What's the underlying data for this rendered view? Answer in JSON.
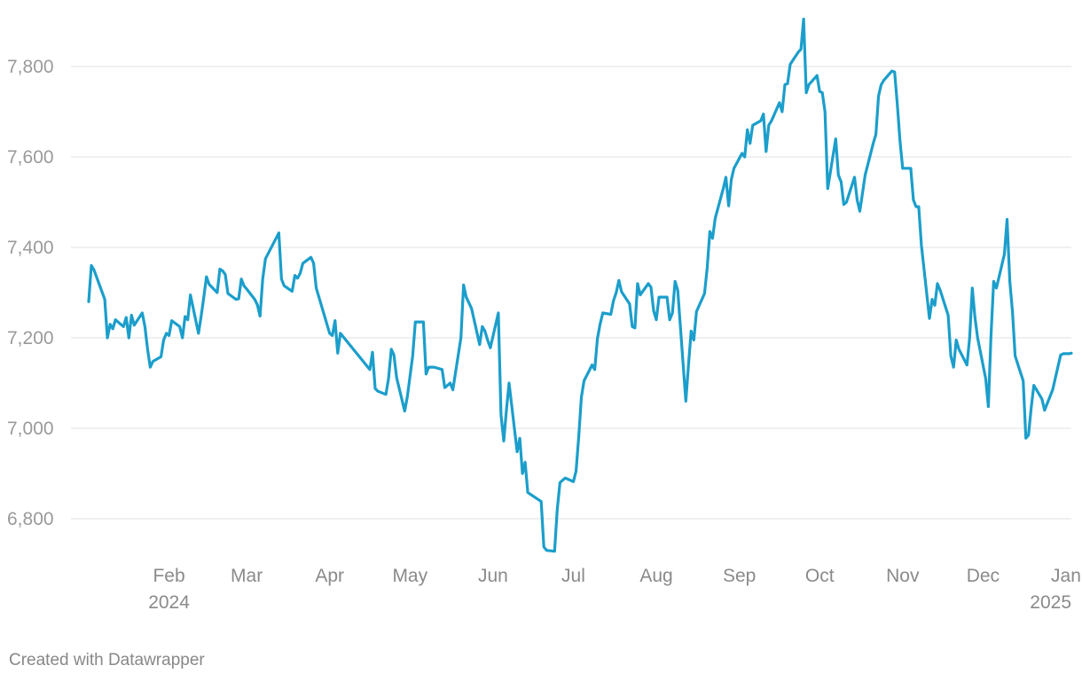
{
  "colors": {
    "line": "#1b9ecb",
    "grid": "#e0e0e0",
    "tick_text": "#9a9a9a"
  },
  "footer": {
    "credit": "Created with Datawrapper"
  },
  "chart_data": {
    "type": "line",
    "title": "",
    "xlabel": "",
    "ylabel": "",
    "grid": true,
    "ylim": [
      6720,
      7920
    ],
    "yticks": [
      6800,
      7000,
      7200,
      7400,
      7600,
      7800
    ],
    "ytick_labels": [
      "6,800",
      "7,000",
      "7,200",
      "7,400",
      "7,600",
      "7,800"
    ],
    "xlim": [
      "2024-01-02",
      "2025-01-03"
    ],
    "xticks": [
      {
        "date": "2024-02-01",
        "line1": "Feb",
        "line2": "2024"
      },
      {
        "date": "2024-03-01",
        "line1": "Mar",
        "line2": ""
      },
      {
        "date": "2024-04-01",
        "line1": "Apr",
        "line2": ""
      },
      {
        "date": "2024-05-01",
        "line1": "May",
        "line2": ""
      },
      {
        "date": "2024-06-01",
        "line1": "Jun",
        "line2": ""
      },
      {
        "date": "2024-07-01",
        "line1": "Jul",
        "line2": ""
      },
      {
        "date": "2024-08-01",
        "line1": "Aug",
        "line2": ""
      },
      {
        "date": "2024-09-01",
        "line1": "Sep",
        "line2": ""
      },
      {
        "date": "2024-10-01",
        "line1": "Oct",
        "line2": ""
      },
      {
        "date": "2024-11-01",
        "line1": "Nov",
        "line2": ""
      },
      {
        "date": "2024-12-01",
        "line1": "Dec",
        "line2": ""
      },
      {
        "date": "2025-01-01",
        "line1": "Jan",
        "line2": "2025"
      }
    ],
    "series": [
      {
        "name": "",
        "x": [
          "2024-01-02",
          "2024-01-03",
          "2024-01-04",
          "2024-01-08",
          "2024-01-09",
          "2024-01-10",
          "2024-01-11",
          "2024-01-12",
          "2024-01-15",
          "2024-01-16",
          "2024-01-17",
          "2024-01-18",
          "2024-01-19",
          "2024-01-22",
          "2024-01-23",
          "2024-01-24",
          "2024-01-25",
          "2024-01-26",
          "2024-01-29",
          "2024-01-30",
          "2024-01-31",
          "2024-02-01",
          "2024-02-02",
          "2024-02-05",
          "2024-02-06",
          "2024-02-07",
          "2024-02-08",
          "2024-02-09",
          "2024-02-12",
          "2024-02-13",
          "2024-02-14",
          "2024-02-15",
          "2024-02-16",
          "2024-02-19",
          "2024-02-20",
          "2024-02-21",
          "2024-02-22",
          "2024-02-23",
          "2024-02-26",
          "2024-02-27",
          "2024-02-28",
          "2024-02-29",
          "2024-03-01",
          "2024-03-04",
          "2024-03-05",
          "2024-03-06",
          "2024-03-07",
          "2024-03-08",
          "2024-03-13",
          "2024-03-14",
          "2024-03-15",
          "2024-03-18",
          "2024-03-19",
          "2024-03-20",
          "2024-03-21",
          "2024-03-22",
          "2024-03-25",
          "2024-03-26",
          "2024-03-27",
          "2024-03-28",
          "2024-04-01",
          "2024-04-02",
          "2024-04-03",
          "2024-04-04",
          "2024-04-05",
          "2024-04-16",
          "2024-04-17",
          "2024-04-18",
          "2024-04-19",
          "2024-04-22",
          "2024-04-23",
          "2024-04-24",
          "2024-04-25",
          "2024-04-26",
          "2024-04-29",
          "2024-04-30",
          "2024-05-02",
          "2024-05-03",
          "2024-05-06",
          "2024-05-07",
          "2024-05-08",
          "2024-05-10",
          "2024-05-13",
          "2024-05-14",
          "2024-05-15",
          "2024-05-16",
          "2024-05-17",
          "2024-05-20",
          "2024-05-21",
          "2024-05-22",
          "2024-05-24",
          "2024-05-27",
          "2024-05-28",
          "2024-05-29",
          "2024-05-30",
          "2024-05-31",
          "2024-06-03",
          "2024-06-04",
          "2024-06-05",
          "2024-06-06",
          "2024-06-07",
          "2024-06-10",
          "2024-06-11",
          "2024-06-12",
          "2024-06-13",
          "2024-06-14",
          "2024-06-19",
          "2024-06-20",
          "2024-06-21",
          "2024-06-24",
          "2024-06-25",
          "2024-06-26",
          "2024-06-27",
          "2024-06-28",
          "2024-07-01",
          "2024-07-02",
          "2024-07-03",
          "2024-07-04",
          "2024-07-05",
          "2024-07-08",
          "2024-07-09",
          "2024-07-10",
          "2024-07-11",
          "2024-07-12",
          "2024-07-15",
          "2024-07-16",
          "2024-07-17",
          "2024-07-18",
          "2024-07-19",
          "2024-07-22",
          "2024-07-23",
          "2024-07-24",
          "2024-07-25",
          "2024-07-26",
          "2024-07-29",
          "2024-07-30",
          "2024-07-31",
          "2024-08-01",
          "2024-08-02",
          "2024-08-05",
          "2024-08-06",
          "2024-08-07",
          "2024-08-08",
          "2024-08-09",
          "2024-08-12",
          "2024-08-13",
          "2024-08-14",
          "2024-08-15",
          "2024-08-16",
          "2024-08-19",
          "2024-08-20",
          "2024-08-21",
          "2024-08-22",
          "2024-08-23",
          "2024-08-26",
          "2024-08-27",
          "2024-08-28",
          "2024-08-29",
          "2024-08-30",
          "2024-09-02",
          "2024-09-03",
          "2024-09-04",
          "2024-09-05",
          "2024-09-06",
          "2024-09-09",
          "2024-09-10",
          "2024-09-11",
          "2024-09-12",
          "2024-09-13",
          "2024-09-16",
          "2024-09-17",
          "2024-09-18",
          "2024-09-19",
          "2024-09-20",
          "2024-09-23",
          "2024-09-24",
          "2024-09-25",
          "2024-09-26",
          "2024-09-27",
          "2024-09-30",
          "2024-10-01",
          "2024-10-02",
          "2024-10-03",
          "2024-10-04",
          "2024-10-07",
          "2024-10-08",
          "2024-10-09",
          "2024-10-10",
          "2024-10-11",
          "2024-10-14",
          "2024-10-15",
          "2024-10-16",
          "2024-10-17",
          "2024-10-18",
          "2024-10-21",
          "2024-10-22",
          "2024-10-23",
          "2024-10-24",
          "2024-10-25",
          "2024-10-28",
          "2024-10-29",
          "2024-10-30",
          "2024-10-31",
          "2024-11-01",
          "2024-11-04",
          "2024-11-05",
          "2024-11-06",
          "2024-11-07",
          "2024-11-08",
          "2024-11-11",
          "2024-11-12",
          "2024-11-13",
          "2024-11-14",
          "2024-11-15",
          "2024-11-18",
          "2024-11-19",
          "2024-11-20",
          "2024-11-21",
          "2024-11-22",
          "2024-11-25",
          "2024-11-26",
          "2024-11-27",
          "2024-11-28",
          "2024-11-29",
          "2024-12-02",
          "2024-12-03",
          "2024-12-04",
          "2024-12-05",
          "2024-12-06",
          "2024-12-09",
          "2024-12-10",
          "2024-12-11",
          "2024-12-12",
          "2024-12-13",
          "2024-12-16",
          "2024-12-17",
          "2024-12-18",
          "2024-12-19",
          "2024-12-20",
          "2024-12-23",
          "2024-12-24",
          "2024-12-27",
          "2024-12-30",
          "2024-12-31",
          "2025-01-02",
          "2025-01-03"
        ],
        "values": [
          7280,
          7360,
          7350,
          7285,
          7200,
          7230,
          7220,
          7240,
          7225,
          7245,
          7200,
          7250,
          7228,
          7255,
          7225,
          7175,
          7135,
          7148,
          7158,
          7195,
          7210,
          7205,
          7238,
          7225,
          7200,
          7247,
          7240,
          7295,
          7210,
          7248,
          7290,
          7335,
          7318,
          7300,
          7352,
          7348,
          7340,
          7298,
          7285,
          7286,
          7330,
          7315,
          7308,
          7285,
          7273,
          7248,
          7330,
          7375,
          7432,
          7330,
          7315,
          7303,
          7338,
          7332,
          7343,
          7365,
          7378,
          7365,
          7310,
          7290,
          7210,
          7205,
          7238,
          7166,
          7210,
          7130,
          7168,
          7088,
          7082,
          7075,
          7110,
          7175,
          7162,
          7112,
          7038,
          7070,
          7160,
          7235,
          7235,
          7120,
          7135,
          7135,
          7130,
          7090,
          7095,
          7100,
          7085,
          7200,
          7317,
          7290,
          7265,
          7185,
          7225,
          7215,
          7195,
          7178,
          7255,
          7030,
          6972,
          7040,
          7100,
          6948,
          6978,
          6900,
          6925,
          6858,
          6838,
          6738,
          6730,
          6728,
          6820,
          6880,
          6885,
          6890,
          6882,
          6905,
          6980,
          7068,
          7105,
          7140,
          7130,
          7198,
          7230,
          7255,
          7252,
          7282,
          7300,
          7327,
          7302,
          7275,
          7225,
          7222,
          7320,
          7295,
          7320,
          7312,
          7260,
          7240,
          7290,
          7290,
          7240,
          7255,
          7325,
          7305,
          7060,
          7140,
          7215,
          7195,
          7258,
          7298,
          7355,
          7435,
          7420,
          7465,
          7530,
          7555,
          7492,
          7550,
          7575,
          7608,
          7600,
          7660,
          7630,
          7670,
          7680,
          7695,
          7612,
          7670,
          7680,
          7720,
          7700,
          7760,
          7762,
          7805,
          7832,
          7838,
          7905,
          7742,
          7760,
          7780,
          7745,
          7742,
          7700,
          7530,
          7640,
          7560,
          7545,
          7495,
          7500,
          7555,
          7505,
          7480,
          7520,
          7560,
          7630,
          7650,
          7735,
          7760,
          7770,
          7790,
          7788,
          7715,
          7635,
          7575,
          7575,
          7505,
          7490,
          7490,
          7405,
          7243,
          7285,
          7272,
          7320,
          7305,
          7250,
          7160,
          7135,
          7195,
          7175,
          7140,
          7200,
          7310,
          7245,
          7200,
          7110,
          7048,
          7205,
          7325,
          7310,
          7385,
          7462,
          7325,
          7258,
          7160,
          7105,
          6978,
          6985,
          7045,
          7095,
          7065,
          7040,
          7085,
          7162,
          7165,
          7165,
          7166
        ]
      }
    ]
  }
}
